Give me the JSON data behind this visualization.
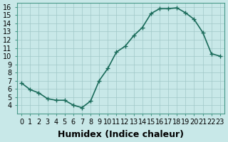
{
  "x": [
    0,
    1,
    2,
    3,
    4,
    5,
    6,
    7,
    8,
    9,
    10,
    11,
    12,
    13,
    14,
    15,
    16,
    17,
    18,
    19,
    20,
    21,
    22,
    23
  ],
  "y": [
    6.7,
    5.9,
    5.5,
    4.8,
    4.6,
    4.6,
    4.0,
    3.7,
    4.5,
    7.0,
    8.5,
    10.5,
    11.2,
    12.5,
    13.5,
    15.2,
    15.8,
    15.8,
    15.9,
    15.3,
    14.5,
    12.9,
    10.3,
    10.0
  ],
  "line_color": "#1a6b5a",
  "marker": "+",
  "marker_size": 5,
  "background_color": "#c8e8e8",
  "grid_color": "#a0c8c8",
  "xlabel": "Humidex (Indice chaleur)",
  "xlim": [
    -0.5,
    23.5
  ],
  "ylim": [
    3,
    16.5
  ],
  "yticks": [
    4,
    5,
    6,
    7,
    8,
    9,
    10,
    11,
    12,
    13,
    14,
    15,
    16
  ],
  "xticks": [
    0,
    1,
    2,
    3,
    4,
    5,
    6,
    7,
    8,
    9,
    10,
    11,
    12,
    13,
    14,
    15,
    16,
    17,
    18,
    19,
    20,
    21,
    22,
    23
  ],
  "tick_label_fontsize": 7,
  "xlabel_fontsize": 9,
  "linewidth": 1.2
}
